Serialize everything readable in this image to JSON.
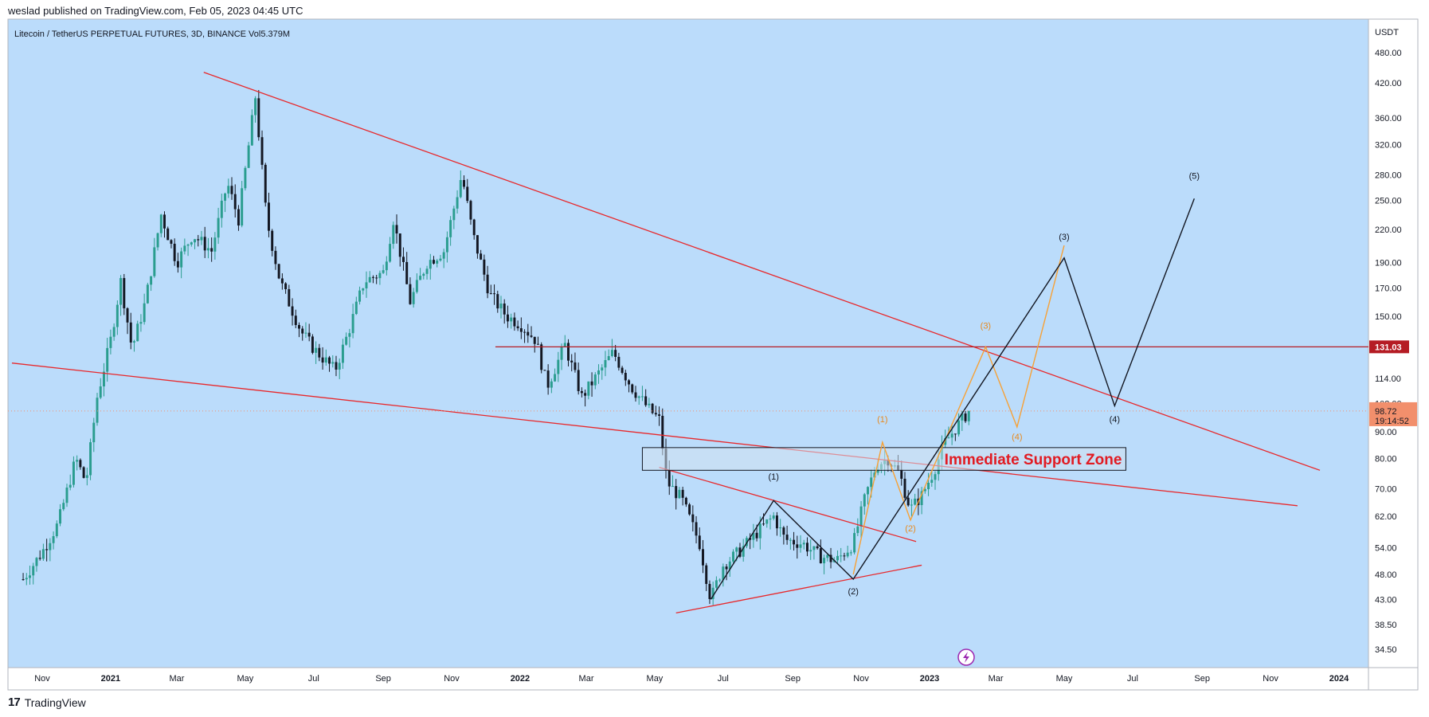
{
  "publish_text": "weslad published on TradingView.com, Feb 05, 2023 04:45 UTC",
  "footer": {
    "logo_mark": "17",
    "logo_text": "TradingView"
  },
  "colors": {
    "plot_bg": "#bbdcfb",
    "up_candle": "#2a9d8f",
    "down_candle": "#131722",
    "trendline": "#e8282b",
    "wave_black": "#131722",
    "wave_orange": "#f7a136",
    "price_label_bg": "#f28f6c",
    "level_label_bg": "#b51c24"
  },
  "chart_data": {
    "type": "candlestick",
    "symbol": "Litecoin / TetherUS PERPETUAL FUTURES, 3D, BINANCE",
    "volume_label": "Vol",
    "volume_value": "5.379M",
    "y_unit": "USDT",
    "y_scale": "log",
    "y_ticks": [
      480,
      420,
      360,
      320,
      280,
      250,
      220,
      190,
      170,
      150,
      114,
      102,
      90,
      80,
      70,
      62,
      54,
      48,
      43,
      38.5,
      34.5
    ],
    "y_tick_labels": [
      "480.00",
      "420.00",
      "360.00",
      "320.00",
      "280.00",
      "250.00",
      "220.00",
      "190.00",
      "170.00",
      "150.00",
      "114.00",
      "102.00",
      "90.00",
      "80.00",
      "70.00",
      "62.00",
      "54.00",
      "48.00",
      "43.00",
      "38.50",
      "34.50"
    ],
    "x_ticks": [
      "Nov",
      "2021",
      "Mar",
      "May",
      "Jul",
      "Sep",
      "Nov",
      "2022",
      "Mar",
      "May",
      "Jul",
      "Sep",
      "Nov",
      "2023",
      "Mar",
      "May",
      "Jul",
      "Sep",
      "Nov",
      "2024"
    ],
    "x_tick_dates": [
      "2020-11-01",
      "2021-01-01",
      "2021-03-01",
      "2021-05-01",
      "2021-07-01",
      "2021-09-01",
      "2021-11-01",
      "2022-01-01",
      "2022-03-01",
      "2022-05-01",
      "2022-07-01",
      "2022-09-01",
      "2022-11-01",
      "2023-01-01",
      "2023-03-01",
      "2023-05-01",
      "2023-07-01",
      "2023-09-01",
      "2023-11-01",
      "2024-01-01"
    ],
    "current_price": "98.72",
    "countdown": "19:14:52",
    "horizontal_level": {
      "value": 131.03,
      "label": "131.03",
      "from": "2021-12-10"
    },
    "price_path": [
      [
        "2020-10-15",
        47
      ],
      [
        "2020-11-01",
        53
      ],
      [
        "2020-11-15",
        60
      ],
      [
        "2020-12-01",
        80
      ],
      [
        "2020-12-10",
        72
      ],
      [
        "2020-12-20",
        105
      ],
      [
        "2021-01-01",
        135
      ],
      [
        "2021-01-10",
        175
      ],
      [
        "2021-01-20",
        130
      ],
      [
        "2021-02-01",
        160
      ],
      [
        "2021-02-15",
        235
      ],
      [
        "2021-03-01",
        190
      ],
      [
        "2021-03-15",
        215
      ],
      [
        "2021-04-01",
        200
      ],
      [
        "2021-04-15",
        270
      ],
      [
        "2021-04-25",
        230
      ],
      [
        "2021-05-10",
        395
      ],
      [
        "2021-05-20",
        230
      ],
      [
        "2021-06-01",
        175
      ],
      [
        "2021-06-20",
        140
      ],
      [
        "2021-07-01",
        130
      ],
      [
        "2021-07-20",
        118
      ],
      [
        "2021-08-01",
        140
      ],
      [
        "2021-08-15",
        175
      ],
      [
        "2021-09-01",
        182
      ],
      [
        "2021-09-10",
        230
      ],
      [
        "2021-09-25",
        160
      ],
      [
        "2021-10-10",
        190
      ],
      [
        "2021-10-25",
        200
      ],
      [
        "2021-11-10",
        280
      ],
      [
        "2021-11-20",
        215
      ],
      [
        "2021-12-05",
        165
      ],
      [
        "2021-12-20",
        150
      ],
      [
        "2022-01-01",
        145
      ],
      [
        "2022-01-15",
        135
      ],
      [
        "2022-01-25",
        110
      ],
      [
        "2022-02-10",
        132
      ],
      [
        "2022-02-25",
        105
      ],
      [
        "2022-03-10",
        115
      ],
      [
        "2022-03-25",
        128
      ],
      [
        "2022-04-10",
        110
      ],
      [
        "2022-04-25",
        100
      ],
      [
        "2022-05-05",
        95
      ],
      [
        "2022-05-12",
        72
      ],
      [
        "2022-05-25",
        67
      ],
      [
        "2022-06-10",
        55
      ],
      [
        "2022-06-20",
        43
      ],
      [
        "2022-07-01",
        50
      ],
      [
        "2022-07-15",
        53
      ],
      [
        "2022-08-01",
        58
      ],
      [
        "2022-08-15",
        62
      ],
      [
        "2022-08-25",
        56
      ],
      [
        "2022-09-10",
        55
      ],
      [
        "2022-09-25",
        52
      ],
      [
        "2022-10-10",
        51
      ],
      [
        "2022-10-25",
        55
      ],
      [
        "2022-11-05",
        68
      ],
      [
        "2022-11-15",
        78
      ],
      [
        "2022-11-25",
        80
      ],
      [
        "2022-12-05",
        75
      ],
      [
        "2022-12-15",
        64
      ],
      [
        "2022-12-25",
        68
      ],
      [
        "2023-01-05",
        76
      ],
      [
        "2023-01-15",
        86
      ],
      [
        "2023-01-25",
        92
      ],
      [
        "2023-02-05",
        98.72
      ]
    ],
    "trendlines": [
      {
        "from": [
          "2021-03-25",
          440
        ],
        "to": [
          "2023-12-15",
          76
        ]
      },
      {
        "from": [
          "2020-10-05",
          122
        ],
        "to": [
          "2023-11-25",
          65
        ]
      },
      {
        "from": [
          "2022-05-05",
          77
        ],
        "to": [
          "2022-12-20",
          55.5
        ]
      },
      {
        "from": [
          "2022-05-20",
          40.5
        ],
        "to": [
          "2022-12-25",
          50
        ]
      }
    ],
    "zone": {
      "from": "2022-04-20",
      "to": "2023-06-25",
      "top": 84,
      "bottom": 76,
      "label": "Immediate Support Zone"
    },
    "wave_black": [
      [
        "2022-06-20",
        43
      ],
      [
        "2022-08-15",
        66.5
      ],
      [
        "2022-10-25",
        47
      ],
      [
        "2023-05-01",
        194
      ],
      [
        "2023-06-15",
        101
      ],
      [
        "2023-08-25",
        252
      ]
    ],
    "wave_black_labels": [
      {
        "text": "(1)",
        "at": [
          "2022-08-15",
          73
        ]
      },
      {
        "text": "(2)",
        "at": [
          "2022-10-25",
          44
        ]
      },
      {
        "text": "(3)",
        "at": [
          "2023-05-01",
          210
        ]
      },
      {
        "text": "(4)",
        "at": [
          "2023-06-15",
          94
        ]
      },
      {
        "text": "(5)",
        "at": [
          "2023-08-25",
          275
        ]
      }
    ],
    "wave_orange": [
      [
        "2022-10-25",
        48
      ],
      [
        "2022-11-20",
        86
      ],
      [
        "2022-12-15",
        61
      ],
      [
        "2023-02-20",
        131
      ],
      [
        "2023-03-20",
        92
      ],
      [
        "2023-05-01",
        205
      ]
    ],
    "wave_orange_labels": [
      {
        "text": "(1)",
        "at": [
          "2022-11-20",
          94
        ]
      },
      {
        "text": "(2)",
        "at": [
          "2022-12-15",
          58
        ]
      },
      {
        "text": "(3)",
        "at": [
          "2023-02-20",
          142
        ]
      },
      {
        "text": "(4)",
        "at": [
          "2023-03-20",
          87
        ]
      }
    ],
    "flash_icon": "lightning-icon"
  }
}
